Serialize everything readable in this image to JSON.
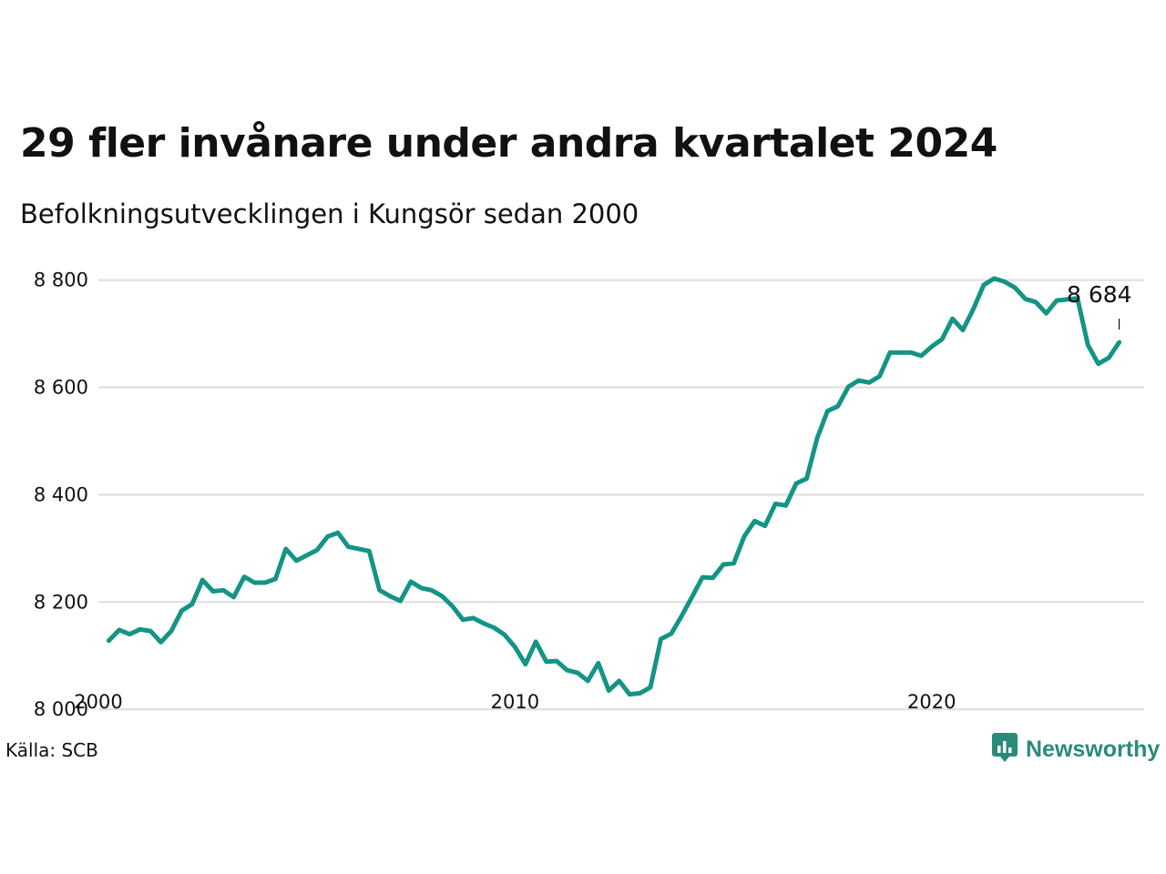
{
  "colors": {
    "line": "#149484",
    "grid": "#dddddd",
    "text": "#111111",
    "brand": "#2a8a7c"
  },
  "source": "Källa: SCB",
  "brand": {
    "name": "Newsworthy",
    "icon": "bar-chart-speech-bubble-icon"
  },
  "chart_data": {
    "type": "line",
    "title": "29 fler invånare under andra kvartalet 2024",
    "subtitle": "Befolkningsutvecklingen i Kungsör sedan 2000",
    "xlabel": "",
    "ylabel": "",
    "x_ticks": [
      "2000",
      "2010",
      "2020"
    ],
    "y_ticks": [
      8000,
      8200,
      8400,
      8600,
      8800
    ],
    "y_tick_labels": [
      "8 000",
      "8 200",
      "8 400",
      "8 600",
      "8 800"
    ],
    "xlim": [
      2000,
      2025.1
    ],
    "ylim": [
      7990,
      8830
    ],
    "grid": "horizontal",
    "annotation": {
      "label": "8 684",
      "x": 2024.5,
      "y": 8684
    },
    "series": [
      {
        "x": [
          2000.25,
          2000.5,
          2000.75,
          2001.0,
          2001.25,
          2001.5,
          2001.75,
          2002.0,
          2002.25,
          2002.5,
          2002.75,
          2003.0,
          2003.25,
          2003.5,
          2003.75,
          2004.0,
          2004.25,
          2004.5,
          2004.75,
          2005.0,
          2005.25,
          2005.5,
          2005.75,
          2006.0,
          2006.25,
          2006.5,
          2006.75,
          2007.0,
          2007.25,
          2007.5,
          2007.75,
          2008.0,
          2008.25,
          2008.5,
          2008.75,
          2009.0,
          2009.25,
          2009.5,
          2009.75,
          2010.0,
          2010.25,
          2010.5,
          2010.75,
          2011.0,
          2011.25,
          2011.5,
          2011.75,
          2012.0,
          2012.25,
          2012.5,
          2012.75,
          2013.0,
          2013.25,
          2013.5,
          2013.75,
          2014.0,
          2014.25,
          2014.5,
          2014.75,
          2015.0,
          2015.25,
          2015.5,
          2015.75,
          2016.0,
          2016.25,
          2016.5,
          2016.75,
          2017.0,
          2017.25,
          2017.5,
          2017.75,
          2018.0,
          2018.25,
          2018.5,
          2018.75,
          2019.0,
          2019.25,
          2019.5,
          2019.75,
          2020.0,
          2020.25,
          2020.5,
          2020.75,
          2021.0,
          2021.25,
          2021.5,
          2021.75,
          2022.0,
          2022.25,
          2022.5,
          2022.75,
          2023.0,
          2023.25,
          2023.5,
          2023.75,
          2024.0,
          2024.25,
          2024.5
        ],
        "values": [
          8128,
          8148,
          8140,
          8149,
          8146,
          8125,
          8146,
          8184,
          8196,
          8241,
          8220,
          8222,
          8209,
          8247,
          8236,
          8236,
          8243,
          8299,
          8277,
          8287,
          8297,
          8322,
          8329,
          8303,
          8299,
          8295,
          8222,
          8211,
          8202,
          8238,
          8226,
          8222,
          8211,
          8192,
          8167,
          8170,
          8160,
          8152,
          8139,
          8116,
          8084,
          8126,
          8089,
          8090,
          8073,
          8068,
          8053,
          8086,
          8035,
          8053,
          8028,
          8030,
          8041,
          8131,
          8141,
          8174,
          8210,
          8246,
          8245,
          8270,
          8272,
          8322,
          8351,
          8342,
          8383,
          8380,
          8421,
          8430,
          8505,
          8556,
          8565,
          8601,
          8613,
          8609,
          8621,
          8665,
          8665,
          8665,
          8659,
          8676,
          8690,
          8728,
          8707,
          8746,
          8791,
          8803,
          8797,
          8786,
          8765,
          8759,
          8738,
          8762,
          8764,
          8766,
          8679,
          8644,
          8655,
          8684
        ]
      }
    ]
  }
}
